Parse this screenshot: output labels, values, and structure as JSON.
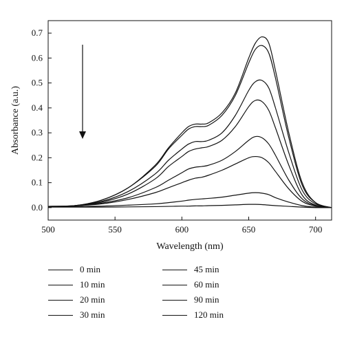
{
  "chart_data": {
    "type": "line",
    "title": "",
    "xlabel": "Wavelength (nm)",
    "ylabel": "Absorbance (a.u.)",
    "xlim": [
      500,
      712
    ],
    "ylim": [
      -0.05,
      0.75
    ],
    "xticks": [
      "500",
      "550",
      "600",
      "650",
      "700"
    ],
    "yticks": [
      "0.0",
      "0.1",
      "0.2",
      "0.3",
      "0.4",
      "0.5",
      "0.6",
      "0.7"
    ],
    "grid": false,
    "legend_position": "below",
    "annotation": "downward arrow indicating decreasing absorbance with time",
    "x": [
      500,
      520,
      540,
      560,
      580,
      590,
      600,
      605,
      610,
      615,
      620,
      630,
      640,
      650,
      655,
      660,
      665,
      670,
      680,
      690,
      700,
      712
    ],
    "series": [
      {
        "name": "0 min",
        "values": [
          0.005,
          0.008,
          0.03,
          0.08,
          0.17,
          0.24,
          0.3,
          0.325,
          0.335,
          0.335,
          0.34,
          0.38,
          0.46,
          0.6,
          0.66,
          0.685,
          0.66,
          0.55,
          0.3,
          0.1,
          0.02,
          0.0
        ]
      },
      {
        "name": "10 min",
        "values": [
          0.005,
          0.008,
          0.03,
          0.08,
          0.165,
          0.235,
          0.29,
          0.315,
          0.325,
          0.325,
          0.33,
          0.37,
          0.45,
          0.58,
          0.635,
          0.65,
          0.62,
          0.52,
          0.28,
          0.09,
          0.02,
          0.0
        ]
      },
      {
        "name": "20 min",
        "values": [
          0.005,
          0.008,
          0.025,
          0.065,
          0.135,
          0.19,
          0.235,
          0.255,
          0.265,
          0.265,
          0.27,
          0.3,
          0.37,
          0.47,
          0.505,
          0.51,
          0.48,
          0.4,
          0.22,
          0.07,
          0.015,
          0.0
        ]
      },
      {
        "name": "30 min",
        "values": [
          0.005,
          0.008,
          0.022,
          0.055,
          0.115,
          0.165,
          0.205,
          0.225,
          0.235,
          0.24,
          0.245,
          0.27,
          0.325,
          0.405,
          0.43,
          0.425,
          0.39,
          0.32,
          0.17,
          0.05,
          0.01,
          0.0
        ]
      },
      {
        "name": "45 min",
        "values": [
          0.004,
          0.007,
          0.018,
          0.04,
          0.08,
          0.11,
          0.14,
          0.155,
          0.162,
          0.165,
          0.17,
          0.19,
          0.225,
          0.27,
          0.285,
          0.28,
          0.255,
          0.21,
          0.11,
          0.035,
          0.008,
          0.0
        ]
      },
      {
        "name": "60 min",
        "values": [
          0.004,
          0.007,
          0.015,
          0.033,
          0.06,
          0.08,
          0.1,
          0.11,
          0.118,
          0.122,
          0.13,
          0.15,
          0.175,
          0.2,
          0.205,
          0.2,
          0.18,
          0.145,
          0.075,
          0.025,
          0.006,
          0.0
        ]
      },
      {
        "name": "90 min",
        "values": [
          0.003,
          0.004,
          0.006,
          0.01,
          0.015,
          0.02,
          0.026,
          0.03,
          0.033,
          0.035,
          0.037,
          0.042,
          0.05,
          0.058,
          0.06,
          0.058,
          0.052,
          0.04,
          0.022,
          0.008,
          0.002,
          0.0
        ]
      },
      {
        "name": "120 min",
        "values": [
          0.002,
          0.002,
          0.002,
          0.003,
          0.004,
          0.005,
          0.006,
          0.006,
          0.007,
          0.007,
          0.008,
          0.009,
          0.011,
          0.013,
          0.013,
          0.012,
          0.01,
          0.008,
          0.005,
          0.002,
          0.0,
          0.0
        ]
      }
    ]
  }
}
